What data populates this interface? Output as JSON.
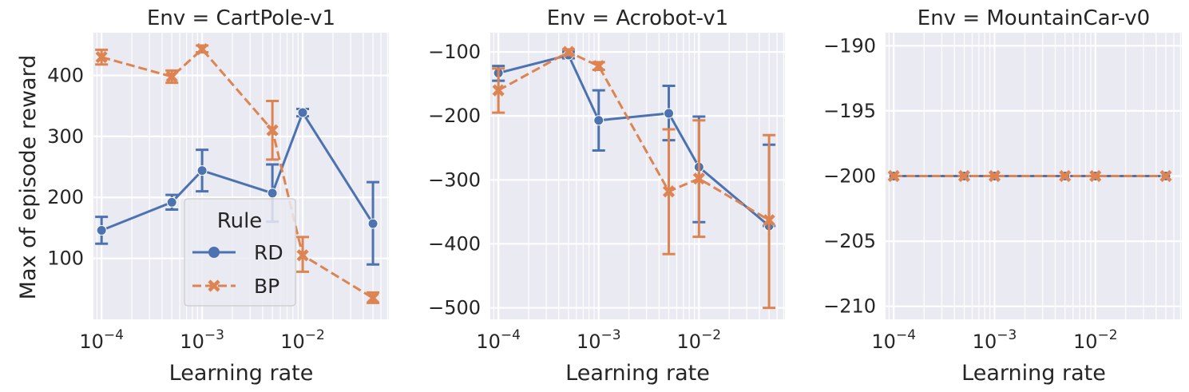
{
  "figure": {
    "ylabel": "Max of episode reward",
    "legend": {
      "title": "Rule",
      "entries": [
        {
          "label": "RD",
          "color": "#4c72b0",
          "marker": "circle",
          "linestyle": "solid"
        },
        {
          "label": "BP",
          "color": "#dd8452",
          "marker": "x",
          "linestyle": "dashed"
        }
      ],
      "placement": "lower-center of first panel"
    },
    "style": {
      "background": "#eaeaf2",
      "grid": true,
      "grid_color": "#ffffff"
    }
  },
  "chart_data": [
    {
      "type": "line",
      "title": "Env = CartPole-v1",
      "xlabel": "Learning rate",
      "ylabel": "Max of episode reward",
      "xscale": "log",
      "xlim": [
        8.3e-05,
        0.072
      ],
      "ylim": [
        0,
        470
      ],
      "x": [
        0.0001,
        0.0005,
        0.001,
        0.005,
        0.01,
        0.05
      ],
      "xticks": [
        {
          "v": 0.0001,
          "base": "10",
          "exp": "−4"
        },
        {
          "v": 0.001,
          "base": "10",
          "exp": "−3"
        },
        {
          "v": 0.01,
          "base": "10",
          "exp": "−2"
        }
      ],
      "yticks": [
        100,
        200,
        300,
        400
      ],
      "series": [
        {
          "name": "RD",
          "values": [
            146,
            192,
            244,
            207,
            339,
            157
          ],
          "err_low": [
            124,
            180,
            210,
            160,
            333,
            90
          ],
          "err_high": [
            168,
            204,
            278,
            254,
            345,
            225
          ]
        },
        {
          "name": "BP",
          "values": [
            430,
            398,
            443,
            310,
            105,
            35
          ],
          "err_low": [
            418,
            388,
            438,
            262,
            78,
            27
          ],
          "err_high": [
            442,
            408,
            449,
            358,
            135,
            44
          ]
        }
      ]
    },
    {
      "type": "line",
      "title": "Env = Acrobot-v1",
      "xlabel": "Learning rate",
      "ylabel": "",
      "xscale": "log",
      "xlim": [
        8.3e-05,
        0.072
      ],
      "ylim": [
        -518,
        -70
      ],
      "x": [
        0.0001,
        0.0005,
        0.001,
        0.005,
        0.01,
        0.05
      ],
      "xticks": [
        {
          "v": 0.0001,
          "base": "10",
          "exp": "−4"
        },
        {
          "v": 0.001,
          "base": "10",
          "exp": "−3"
        },
        {
          "v": 0.01,
          "base": "10",
          "exp": "−2"
        }
      ],
      "yticks": [
        {
          "v": -100,
          "label": "−100"
        },
        {
          "v": -200,
          "label": "−200"
        },
        {
          "v": -300,
          "label": "−300"
        },
        {
          "v": -400,
          "label": "−400"
        },
        {
          "v": -500,
          "label": "−500"
        }
      ],
      "series": [
        {
          "name": "RD",
          "values": [
            -133,
            -105,
            -207,
            -196,
            -280,
            -372
          ],
          "err_low": [
            -145,
            -110,
            -254,
            -238,
            -366,
            -372
          ],
          "err_high": [
            -122,
            -100,
            -160,
            -153,
            -201,
            -245
          ]
        },
        {
          "name": "BP",
          "values": [
            -160,
            -100,
            -122,
            -318,
            -298,
            -363
          ],
          "err_low": [
            -195,
            -105,
            -128,
            -416,
            -389,
            -500
          ],
          "err_high": [
            -126,
            -96,
            -116,
            -221,
            -207,
            -230
          ]
        }
      ]
    },
    {
      "type": "line",
      "title": "Env = MountainCar-v0",
      "xlabel": "Learning rate",
      "ylabel": "",
      "xscale": "log",
      "xlim": [
        8.3e-05,
        0.072
      ],
      "ylim": [
        -211,
        -189
      ],
      "x": [
        0.0001,
        0.0005,
        0.001,
        0.005,
        0.01,
        0.05
      ],
      "xticks": [
        {
          "v": 0.0001,
          "base": "10",
          "exp": "−4"
        },
        {
          "v": 0.001,
          "base": "10",
          "exp": "−3"
        },
        {
          "v": 0.01,
          "base": "10",
          "exp": "−2"
        }
      ],
      "yticks": [
        {
          "v": -190,
          "label": "−190"
        },
        {
          "v": -195,
          "label": "−195"
        },
        {
          "v": -200,
          "label": "−200"
        },
        {
          "v": -205,
          "label": "−205"
        },
        {
          "v": -210,
          "label": "−210"
        }
      ],
      "series": [
        {
          "name": "RD",
          "values": [
            -200,
            -200,
            -200,
            -200,
            -200,
            -200
          ]
        },
        {
          "name": "BP",
          "values": [
            -200,
            -200,
            -200,
            -200,
            -200,
            -200
          ]
        }
      ]
    }
  ]
}
